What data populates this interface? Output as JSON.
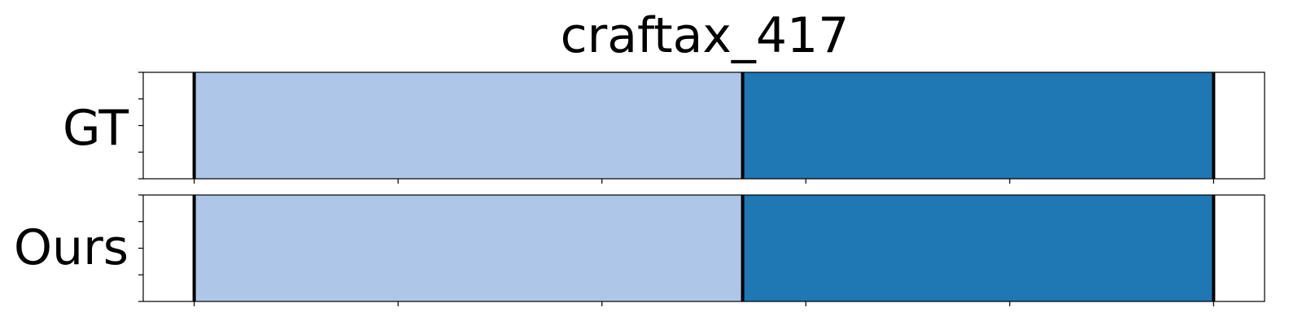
{
  "chart_data": {
    "type": "bar",
    "title": "craftax_417",
    "rows": [
      {
        "label": "GT",
        "segments": [
          {
            "start": 0,
            "end": 269,
            "color": "#aec7e8"
          },
          {
            "start": 269,
            "end": 500,
            "color": "#1f77b4"
          }
        ],
        "boundaries": [
          0,
          269,
          500
        ]
      },
      {
        "label": "Ours",
        "segments": [
          {
            "start": 0,
            "end": 269,
            "color": "#aec7e8"
          },
          {
            "start": 269,
            "end": 500,
            "color": "#1f77b4"
          }
        ],
        "boundaries": [
          0,
          269,
          500
        ]
      }
    ],
    "xlim": [
      -25,
      525
    ],
    "x_ticks": [
      0,
      100,
      200,
      300,
      400,
      500
    ],
    "grid": false,
    "legend": "none"
  }
}
